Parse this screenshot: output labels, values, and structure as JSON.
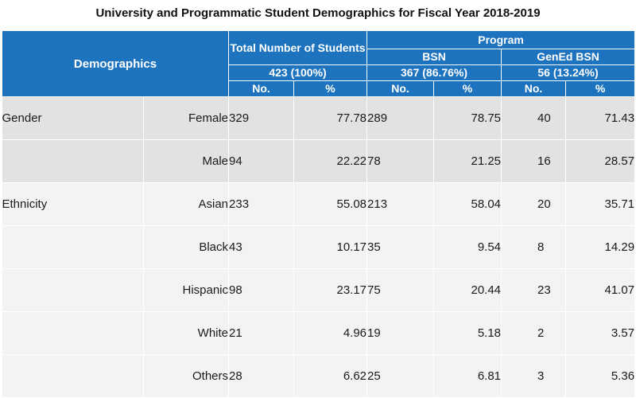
{
  "title": "University and Programmatic Student Demographics for Fiscal Year 2018-2019",
  "header": {
    "demographics": "Demographics",
    "total_label": "Total Number of Students",
    "total_value": "423 (100%)",
    "program_label": "Program",
    "bsn_label": "BSN",
    "bsn_value": "367 (86.76%)",
    "gened_label": "GenEd BSN",
    "gened_value": "56 (13.24%)",
    "no_label": "No.",
    "pct_label": "%"
  },
  "colors": {
    "header_bg": "#1e73be",
    "gender_bg": "#e2e2e2",
    "ethnicity_bg": "#f3f3f3"
  },
  "rows": [
    {
      "category": "Gender",
      "sub": "Female",
      "total_no": "329",
      "total_pct": "77.78",
      "bsn_no": "289",
      "bsn_pct": "78.75",
      "gened_no": "40",
      "gened_pct": "71.43"
    },
    {
      "category": "",
      "sub": "Male",
      "total_no": "94",
      "total_pct": "22.22",
      "bsn_no": "78",
      "bsn_pct": "21.25",
      "gened_no": "16",
      "gened_pct": "28.57"
    },
    {
      "category": "Ethnicity",
      "sub": "Asian",
      "total_no": "233",
      "total_pct": "55.08",
      "bsn_no": "213",
      "bsn_pct": "58.04",
      "gened_no": "20",
      "gened_pct": "35.71"
    },
    {
      "category": "",
      "sub": "Black",
      "total_no": "43",
      "total_pct": "10.17",
      "bsn_no": "35",
      "bsn_pct": "9.54",
      "gened_no": "8",
      "gened_pct": "14.29"
    },
    {
      "category": "",
      "sub": "Hispanic",
      "total_no": "98",
      "total_pct": "23.17",
      "bsn_no": "75",
      "bsn_pct": "20.44",
      "gened_no": "23",
      "gened_pct": "41.07"
    },
    {
      "category": "",
      "sub": "White",
      "total_no": "21",
      "total_pct": "4.96",
      "bsn_no": "19",
      "bsn_pct": "5.18",
      "gened_no": "2",
      "gened_pct": "3.57"
    },
    {
      "category": "",
      "sub": "Others",
      "total_no": "28",
      "total_pct": "6.62",
      "bsn_no": "25",
      "bsn_pct": "6.81",
      "gened_no": "3",
      "gened_pct": "5.36"
    }
  ]
}
